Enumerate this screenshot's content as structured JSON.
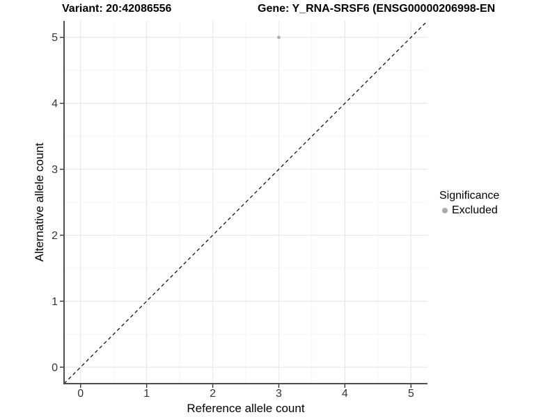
{
  "titles": {
    "variant": "Variant: 20:42086556",
    "gene": "Gene: Y_RNA-SRSF6 (ENSG00000206998-EN"
  },
  "chart_data": {
    "type": "scatter",
    "xlabel": "Reference allele count",
    "ylabel": "Alternative allele count",
    "xlim": [
      -0.25,
      5.25
    ],
    "ylim": [
      -0.25,
      5.25
    ],
    "x_ticks": [
      0,
      1,
      2,
      3,
      4,
      5
    ],
    "y_ticks": [
      0,
      1,
      2,
      3,
      4,
      5
    ],
    "x_minor_gridlines": [
      0.5,
      1.5,
      2.5,
      3.5,
      4.5
    ],
    "y_minor_gridlines": [
      0.5,
      1.5,
      2.5,
      3.5,
      4.5
    ],
    "points": [
      {
        "x": 3,
        "y": 5,
        "significance": "Excluded"
      }
    ],
    "identity_line": {
      "slope": 1,
      "intercept": 0,
      "style": "dashed"
    },
    "grid": true,
    "legend": {
      "title": "Significance",
      "position": "right",
      "items": [
        {
          "label": "Excluded",
          "color": "#aaaaaa"
        }
      ]
    }
  },
  "colors": {
    "background": "#ffffff",
    "grid_major": "#e8e8e8",
    "grid_minor": "#f4f4f4",
    "axis_line": "#4d4d4d",
    "tick_mark": "#333333",
    "tick_label": "#333333",
    "title_text": "#000000",
    "point": "#aeaeae",
    "identity_line": "#111111"
  }
}
